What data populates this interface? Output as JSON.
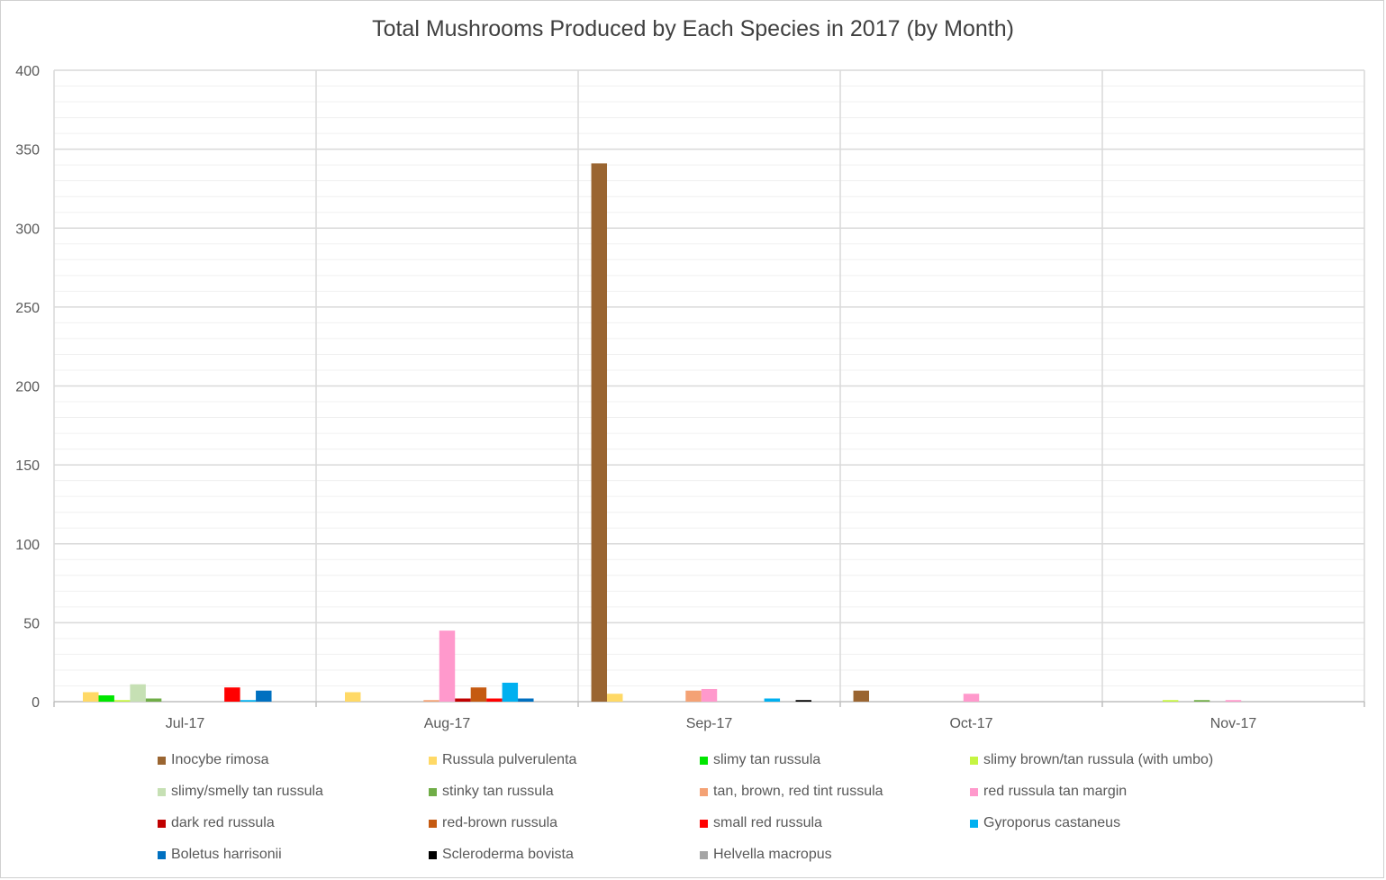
{
  "chart_data": {
    "type": "bar",
    "title": "Total Mushrooms Produced by Each Species in 2017 (by Month)",
    "xlabel": "",
    "ylabel": "",
    "ylim": [
      0,
      400
    ],
    "yticks": [
      0,
      50,
      100,
      150,
      200,
      250,
      300,
      350,
      400
    ],
    "ytick_labels": [
      "0",
      "50",
      "100",
      "150",
      "200",
      "250",
      "300",
      "350",
      "400"
    ],
    "minor_grid_step": 10,
    "grid": true,
    "legend_position": "bottom",
    "categories": [
      "Jul-17",
      "Aug-17",
      "Sep-17",
      "Oct-17",
      "Nov-17"
    ],
    "series": [
      {
        "name": "Inocybe rimosa",
        "color": "#9a6531",
        "values": [
          0,
          0,
          341,
          7,
          0
        ]
      },
      {
        "name": "Russula pulverulenta",
        "color": "#ffd966",
        "values": [
          6,
          6,
          5,
          0,
          0
        ]
      },
      {
        "name": "slimy tan russula",
        "color": "#00e600",
        "values": [
          4,
          0,
          0,
          0,
          0
        ]
      },
      {
        "name": "slimy brown/tan russula (with umbo)",
        "color": "#c5f542",
        "values": [
          1,
          0,
          0,
          0,
          1
        ]
      },
      {
        "name": "slimy/smelly tan russula",
        "color": "#c6e0b4",
        "values": [
          11,
          0,
          0,
          0,
          0
        ]
      },
      {
        "name": "stinky tan russula",
        "color": "#70ad47",
        "values": [
          2,
          0,
          0,
          0,
          1
        ]
      },
      {
        "name": "tan, brown, red tint russula",
        "color": "#f4a275",
        "values": [
          0,
          1,
          7,
          0,
          0
        ]
      },
      {
        "name": "red russula tan margin",
        "color": "#ff99cc",
        "values": [
          0,
          45,
          8,
          5,
          1
        ]
      },
      {
        "name": "dark red russula",
        "color": "#c00000",
        "values": [
          0,
          2,
          0,
          0,
          0
        ]
      },
      {
        "name": "red-brown russula",
        "color": "#c55a11",
        "values": [
          0,
          9,
          0,
          0,
          0
        ]
      },
      {
        "name": "small red russula",
        "color": "#ff0000",
        "values": [
          9,
          2,
          0,
          0,
          0
        ]
      },
      {
        "name": "Gyroporus castaneus",
        "color": "#00b0f0",
        "values": [
          1,
          12,
          2,
          0,
          0
        ]
      },
      {
        "name": "Boletus harrisonii",
        "color": "#0070c0",
        "values": [
          7,
          2,
          0,
          0,
          0
        ]
      },
      {
        "name": "Scleroderma bovista",
        "color": "#000000",
        "values": [
          0,
          0,
          1,
          0,
          0
        ]
      },
      {
        "name": "Helvella macropus",
        "color": "#a5a5a5",
        "values": [
          0,
          0,
          0,
          0,
          0
        ]
      }
    ]
  }
}
